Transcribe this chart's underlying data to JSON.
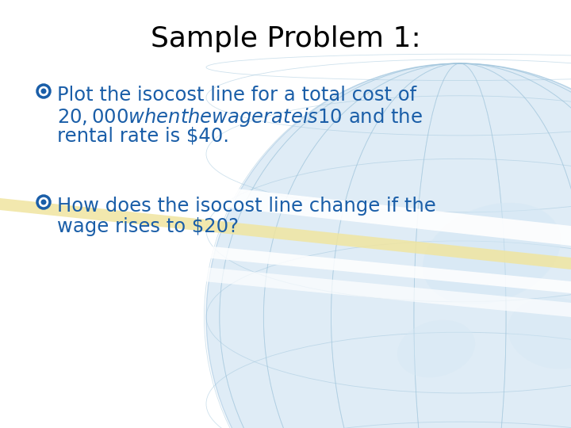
{
  "title": "Sample Problem 1:",
  "title_color": "#000000",
  "title_fontsize": 26,
  "bullet1_line1": "Plot the isocost line for a total cost of",
  "bullet1_line2": "$20,000 when the wage rate is $10 and the",
  "bullet1_line3": "rental rate is $40.",
  "bullet2_line1": "How does the isocost line change if the",
  "bullet2_line2": "wage rises to $20?",
  "text_color": "#1a5ea8",
  "text_fontsize": 17.5,
  "background_color": "#ffffff",
  "globe_fill": "#c5ddf0",
  "globe_edge": "#a0c4e0",
  "grid_color": "#9ec4db",
  "land_color": "#d5e8f5",
  "stripe_white": "#ffffff",
  "stripe_yellow": "#f0e5a0",
  "bullet_symbol": "○"
}
